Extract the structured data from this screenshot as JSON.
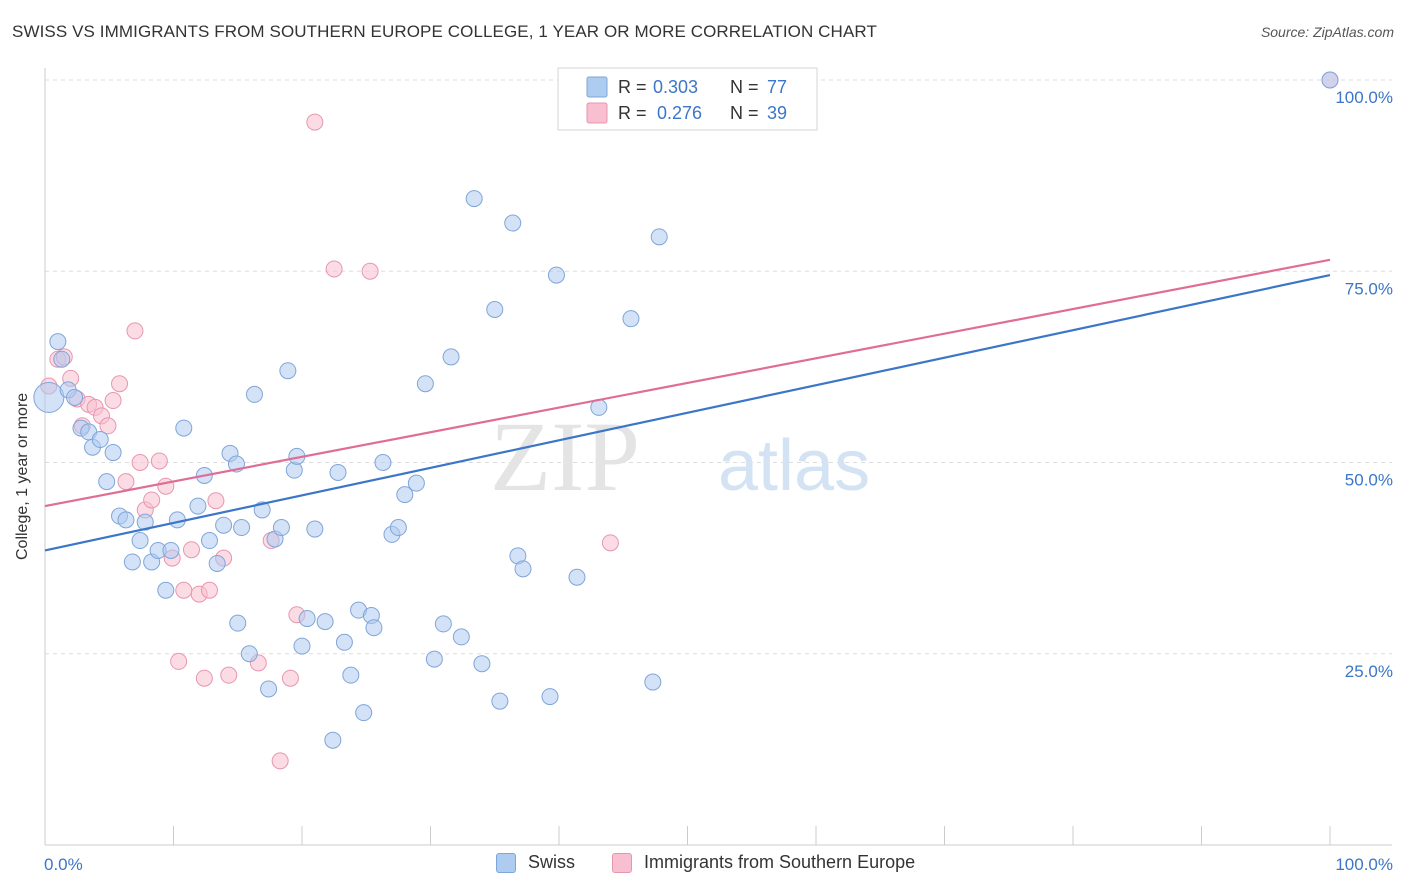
{
  "title": "SWISS VS IMMIGRANTS FROM SOUTHERN EUROPE COLLEGE, 1 YEAR OR MORE CORRELATION CHART",
  "source": "Source: ZipAtlas.com",
  "watermark": {
    "zip": "ZIP",
    "atlas": "atlas"
  },
  "colors": {
    "blue_fill": "#aecbf0",
    "blue_stroke": "#7fa6d9",
    "blue_line": "#3b76c8",
    "pink_fill": "#f7bfd0",
    "pink_stroke": "#e896b0",
    "pink_line": "#e06d96",
    "tick_text": "#3b76c8",
    "grid": "#dddddd"
  },
  "legend": {
    "swiss": {
      "r_label": "R =",
      "r_value": "0.303",
      "n_label": "N =",
      "n_value": "77"
    },
    "immigrants": {
      "r_label": "R =",
      "r_value": "0.276",
      "n_label": "N =",
      "n_value": "39"
    }
  },
  "bottom_legend": {
    "swiss": "Swiss",
    "immigrants": "Immigrants from Southern Europe"
  },
  "chart_data": {
    "type": "scatter",
    "title": "SWISS VS IMMIGRANTS FROM SOUTHERN EUROPE COLLEGE, 1 YEAR OR MORE CORRELATION CHART",
    "xlabel": "",
    "ylabel": "College, 1 year or more",
    "xlim": [
      0,
      100
    ],
    "ylim": [
      0,
      100
    ],
    "x_tick_labels": {
      "left": "0.0%",
      "right": "100.0%"
    },
    "y_ticks": [
      {
        "value": 100,
        "label": "100.0%"
      },
      {
        "value": 75,
        "label": "75.0%"
      },
      {
        "value": 50,
        "label": "50.0%"
      },
      {
        "value": 25,
        "label": "25.0%"
      }
    ],
    "series": [
      {
        "name": "Swiss",
        "r": 0.303,
        "n": 77,
        "trend": {
          "x": [
            0,
            100
          ],
          "y": [
            38.5,
            74.5
          ]
        },
        "points": [
          {
            "x": 0.3,
            "y": 58.5,
            "big": true
          },
          {
            "x": 1.0,
            "y": 65.8
          },
          {
            "x": 1.3,
            "y": 63.5
          },
          {
            "x": 1.8,
            "y": 59.5
          },
          {
            "x": 2.3,
            "y": 58.5
          },
          {
            "x": 2.8,
            "y": 54.5
          },
          {
            "x": 3.4,
            "y": 54.0
          },
          {
            "x": 3.7,
            "y": 52.0
          },
          {
            "x": 4.3,
            "y": 53.0
          },
          {
            "x": 4.8,
            "y": 47.5
          },
          {
            "x": 5.3,
            "y": 51.3
          },
          {
            "x": 5.8,
            "y": 43.0
          },
          {
            "x": 6.3,
            "y": 42.5
          },
          {
            "x": 6.8,
            "y": 37.0
          },
          {
            "x": 7.4,
            "y": 39.8
          },
          {
            "x": 7.8,
            "y": 42.2
          },
          {
            "x": 8.3,
            "y": 37.0
          },
          {
            "x": 8.8,
            "y": 38.5
          },
          {
            "x": 9.4,
            "y": 33.3
          },
          {
            "x": 9.8,
            "y": 38.5
          },
          {
            "x": 10.3,
            "y": 42.5
          },
          {
            "x": 10.8,
            "y": 54.5
          },
          {
            "x": 11.9,
            "y": 44.3
          },
          {
            "x": 12.4,
            "y": 48.3
          },
          {
            "x": 12.8,
            "y": 39.8
          },
          {
            "x": 13.4,
            "y": 36.8
          },
          {
            "x": 13.9,
            "y": 41.8
          },
          {
            "x": 14.4,
            "y": 51.2
          },
          {
            "x": 14.9,
            "y": 49.8
          },
          {
            "x": 15.3,
            "y": 41.5
          },
          {
            "x": 15.9,
            "y": 25.0
          },
          {
            "x": 16.3,
            "y": 58.9
          },
          {
            "x": 16.9,
            "y": 43.8
          },
          {
            "x": 17.4,
            "y": 20.4
          },
          {
            "x": 17.9,
            "y": 40.0
          },
          {
            "x": 18.4,
            "y": 41.5
          },
          {
            "x": 18.9,
            "y": 62.0
          },
          {
            "x": 19.4,
            "y": 49.0
          },
          {
            "x": 19.6,
            "y": 50.8
          },
          {
            "x": 20.4,
            "y": 29.6
          },
          {
            "x": 21.0,
            "y": 41.3
          },
          {
            "x": 21.8,
            "y": 29.2
          },
          {
            "x": 22.4,
            "y": 13.7
          },
          {
            "x": 22.8,
            "y": 48.7
          },
          {
            "x": 23.3,
            "y": 26.5
          },
          {
            "x": 23.8,
            "y": 22.2
          },
          {
            "x": 24.4,
            "y": 30.7
          },
          {
            "x": 24.8,
            "y": 17.3
          },
          {
            "x": 25.4,
            "y": 30.0
          },
          {
            "x": 25.6,
            "y": 28.4
          },
          {
            "x": 26.3,
            "y": 50.0
          },
          {
            "x": 27.0,
            "y": 40.6
          },
          {
            "x": 27.5,
            "y": 41.5
          },
          {
            "x": 28.0,
            "y": 45.8
          },
          {
            "x": 28.9,
            "y": 47.3
          },
          {
            "x": 29.6,
            "y": 60.3
          },
          {
            "x": 30.3,
            "y": 24.3
          },
          {
            "x": 31.0,
            "y": 28.9
          },
          {
            "x": 31.6,
            "y": 63.8
          },
          {
            "x": 32.4,
            "y": 27.2
          },
          {
            "x": 33.4,
            "y": 84.5
          },
          {
            "x": 34.0,
            "y": 23.7
          },
          {
            "x": 35.0,
            "y": 70.0
          },
          {
            "x": 35.4,
            "y": 18.8
          },
          {
            "x": 36.4,
            "y": 81.3
          },
          {
            "x": 36.8,
            "y": 37.8
          },
          {
            "x": 37.2,
            "y": 36.1
          },
          {
            "x": 39.3,
            "y": 19.4
          },
          {
            "x": 39.8,
            "y": 74.5
          },
          {
            "x": 41.4,
            "y": 35.0
          },
          {
            "x": 43.1,
            "y": 57.2
          },
          {
            "x": 45.6,
            "y": 68.8
          },
          {
            "x": 47.3,
            "y": 21.3
          },
          {
            "x": 47.8,
            "y": 79.5
          },
          {
            "x": 100.0,
            "y": 100.0
          },
          {
            "x": 20.0,
            "y": 26.0
          },
          {
            "x": 15.0,
            "y": 29.0
          }
        ]
      },
      {
        "name": "Immigrants from Southern Europe",
        "r": 0.276,
        "n": 39,
        "trend": {
          "x": [
            0,
            100
          ],
          "y": [
            44.3,
            76.5
          ]
        },
        "points": [
          {
            "x": 0.3,
            "y": 60.0
          },
          {
            "x": 1.0,
            "y": 63.5
          },
          {
            "x": 1.5,
            "y": 63.8
          },
          {
            "x": 2.0,
            "y": 61.0
          },
          {
            "x": 2.5,
            "y": 58.3
          },
          {
            "x": 2.9,
            "y": 54.8
          },
          {
            "x": 3.4,
            "y": 57.6
          },
          {
            "x": 3.9,
            "y": 57.2
          },
          {
            "x": 4.4,
            "y": 56.1
          },
          {
            "x": 4.9,
            "y": 54.8
          },
          {
            "x": 5.3,
            "y": 58.1
          },
          {
            "x": 5.8,
            "y": 60.3
          },
          {
            "x": 6.3,
            "y": 47.5
          },
          {
            "x": 7.0,
            "y": 67.2
          },
          {
            "x": 7.4,
            "y": 50.0
          },
          {
            "x": 7.8,
            "y": 43.8
          },
          {
            "x": 8.3,
            "y": 45.1
          },
          {
            "x": 8.9,
            "y": 50.2
          },
          {
            "x": 9.4,
            "y": 46.9
          },
          {
            "x": 9.9,
            "y": 37.5
          },
          {
            "x": 10.4,
            "y": 24.0
          },
          {
            "x": 10.8,
            "y": 33.3
          },
          {
            "x": 11.4,
            "y": 38.6
          },
          {
            "x": 12.0,
            "y": 32.8
          },
          {
            "x": 12.4,
            "y": 21.8
          },
          {
            "x": 12.8,
            "y": 33.3
          },
          {
            "x": 13.3,
            "y": 45.0
          },
          {
            "x": 13.9,
            "y": 37.5
          },
          {
            "x": 14.3,
            "y": 22.2
          },
          {
            "x": 16.6,
            "y": 23.8
          },
          {
            "x": 17.6,
            "y": 39.8
          },
          {
            "x": 18.3,
            "y": 11.0
          },
          {
            "x": 19.1,
            "y": 21.8
          },
          {
            "x": 19.6,
            "y": 30.1
          },
          {
            "x": 21.0,
            "y": 94.5
          },
          {
            "x": 22.5,
            "y": 75.3
          },
          {
            "x": 25.3,
            "y": 75.0
          },
          {
            "x": 44.0,
            "y": 39.5
          },
          {
            "x": 100.0,
            "y": 100.0
          }
        ]
      }
    ]
  }
}
